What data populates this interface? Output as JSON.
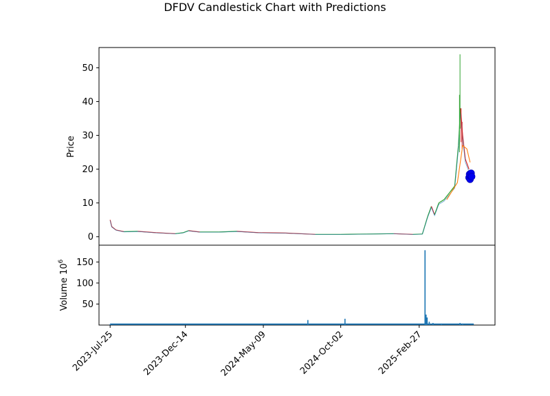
{
  "chart_data": {
    "type": "candlestick",
    "title": "DFDV Candlestick Chart with Predictions",
    "price_panel": {
      "ylabel": "Price",
      "ylim": [
        -2.5,
        56
      ],
      "y_ticks": [
        0,
        10,
        20,
        30,
        40,
        50
      ],
      "grid": false
    },
    "volume_panel": {
      "ylabel": "Volume",
      "ylabel_exponent": "10",
      "ylabel_exponent_power": "6",
      "ylim": [
        0,
        190
      ],
      "y_ticks": [
        50,
        100,
        150
      ],
      "grid": false
    },
    "x_axis": {
      "start_date": "2023-07-04",
      "end_date": "2025-07-20",
      "tick_labels": [
        "2023-Jul-25",
        "2023-Dec-14",
        "2024-May-09",
        "2024-Oct-02",
        "2025-Feb-27"
      ],
      "tick_dates": [
        "2023-07-25",
        "2023-12-14",
        "2024-05-09",
        "2024-10-02",
        "2025-02-27"
      ]
    },
    "price_series": [
      {
        "date": "2023-07-25",
        "close": 5.0
      },
      {
        "date": "2023-07-28",
        "close": 3.0
      },
      {
        "date": "2023-08-05",
        "close": 2.0
      },
      {
        "date": "2023-08-20",
        "close": 1.5
      },
      {
        "date": "2023-09-15",
        "close": 1.6
      },
      {
        "date": "2023-10-20",
        "close": 1.2
      },
      {
        "date": "2023-11-25",
        "close": 0.9
      },
      {
        "date": "2023-12-10",
        "close": 1.2
      },
      {
        "date": "2023-12-20",
        "close": 1.8
      },
      {
        "date": "2024-01-10",
        "close": 1.4
      },
      {
        "date": "2024-02-15",
        "close": 1.4
      },
      {
        "date": "2024-03-20",
        "close": 1.6
      },
      {
        "date": "2024-05-01",
        "close": 1.2
      },
      {
        "date": "2024-06-20",
        "close": 1.1
      },
      {
        "date": "2024-08-15",
        "close": 0.7
      },
      {
        "date": "2024-10-02",
        "close": 0.7
      },
      {
        "date": "2024-11-20",
        "close": 0.8
      },
      {
        "date": "2025-01-10",
        "close": 0.9
      },
      {
        "date": "2025-02-15",
        "close": 0.7
      },
      {
        "date": "2025-03-05",
        "close": 0.8
      },
      {
        "date": "2025-03-15",
        "close": 6.0
      },
      {
        "date": "2025-03-22",
        "close": 9.0
      },
      {
        "date": "2025-03-28",
        "close": 6.5
      },
      {
        "date": "2025-04-05",
        "close": 10.0
      },
      {
        "date": "2025-04-15",
        "close": 11.0
      },
      {
        "date": "2025-04-25",
        "close": 13.0
      },
      {
        "date": "2025-05-05",
        "close": 15.0
      },
      {
        "date": "2025-05-12",
        "close": 27.0
      },
      {
        "date": "2025-05-16",
        "close": 38.0
      },
      {
        "date": "2025-05-20",
        "close": 30.0
      },
      {
        "date": "2025-05-25",
        "close": 23.0
      },
      {
        "date": "2025-06-01",
        "close": 20.0
      }
    ],
    "spikes": [
      {
        "date": "2025-05-14",
        "low": 25,
        "high": 42,
        "color": "#2ca02c"
      },
      {
        "date": "2025-05-15",
        "low": 32,
        "high": 54,
        "color": "#2ca02c"
      },
      {
        "date": "2025-05-17",
        "low": 28,
        "high": 38,
        "color": "#d62728"
      },
      {
        "date": "2025-05-19",
        "low": 26,
        "high": 34,
        "color": "#d62728"
      }
    ],
    "prediction_series": {
      "color": "#ff7f0e",
      "points": [
        {
          "date": "2025-04-20",
          "value": 11.0
        },
        {
          "date": "2025-05-10",
          "value": 16.0
        },
        {
          "date": "2025-05-20",
          "value": 27.0
        },
        {
          "date": "2025-05-28",
          "value": 26.0
        },
        {
          "date": "2025-06-03",
          "value": 22.0
        }
      ]
    },
    "prediction_markers": {
      "color": "#0000ee",
      "points": [
        {
          "date": "2025-06-01",
          "value": 17.5
        },
        {
          "date": "2025-06-02",
          "value": 18.5
        },
        {
          "date": "2025-06-03",
          "value": 17.0
        },
        {
          "date": "2025-06-04",
          "value": 18.0
        },
        {
          "date": "2025-06-05",
          "value": 18.8
        },
        {
          "date": "2025-06-06",
          "value": 17.8
        }
      ]
    },
    "volume_series": [
      {
        "date": "2023-07-25",
        "value": 2
      },
      {
        "date": "2024-08-01",
        "value": 12
      },
      {
        "date": "2024-10-10",
        "value": 15
      },
      {
        "date": "2025-03-10",
        "value": 178
      },
      {
        "date": "2025-03-12",
        "value": 25
      },
      {
        "date": "2025-03-14",
        "value": 18
      },
      {
        "date": "2025-03-18",
        "value": 8
      },
      {
        "date": "2025-03-25",
        "value": 5
      },
      {
        "date": "2025-04-10",
        "value": 3
      },
      {
        "date": "2025-05-15",
        "value": 5
      },
      {
        "date": "2025-05-20",
        "value": 3
      }
    ],
    "colors": {
      "up": "#2ca02c",
      "down": "#d62728",
      "moving_average": "#1f77b4",
      "volume": "#1f77b4"
    }
  }
}
